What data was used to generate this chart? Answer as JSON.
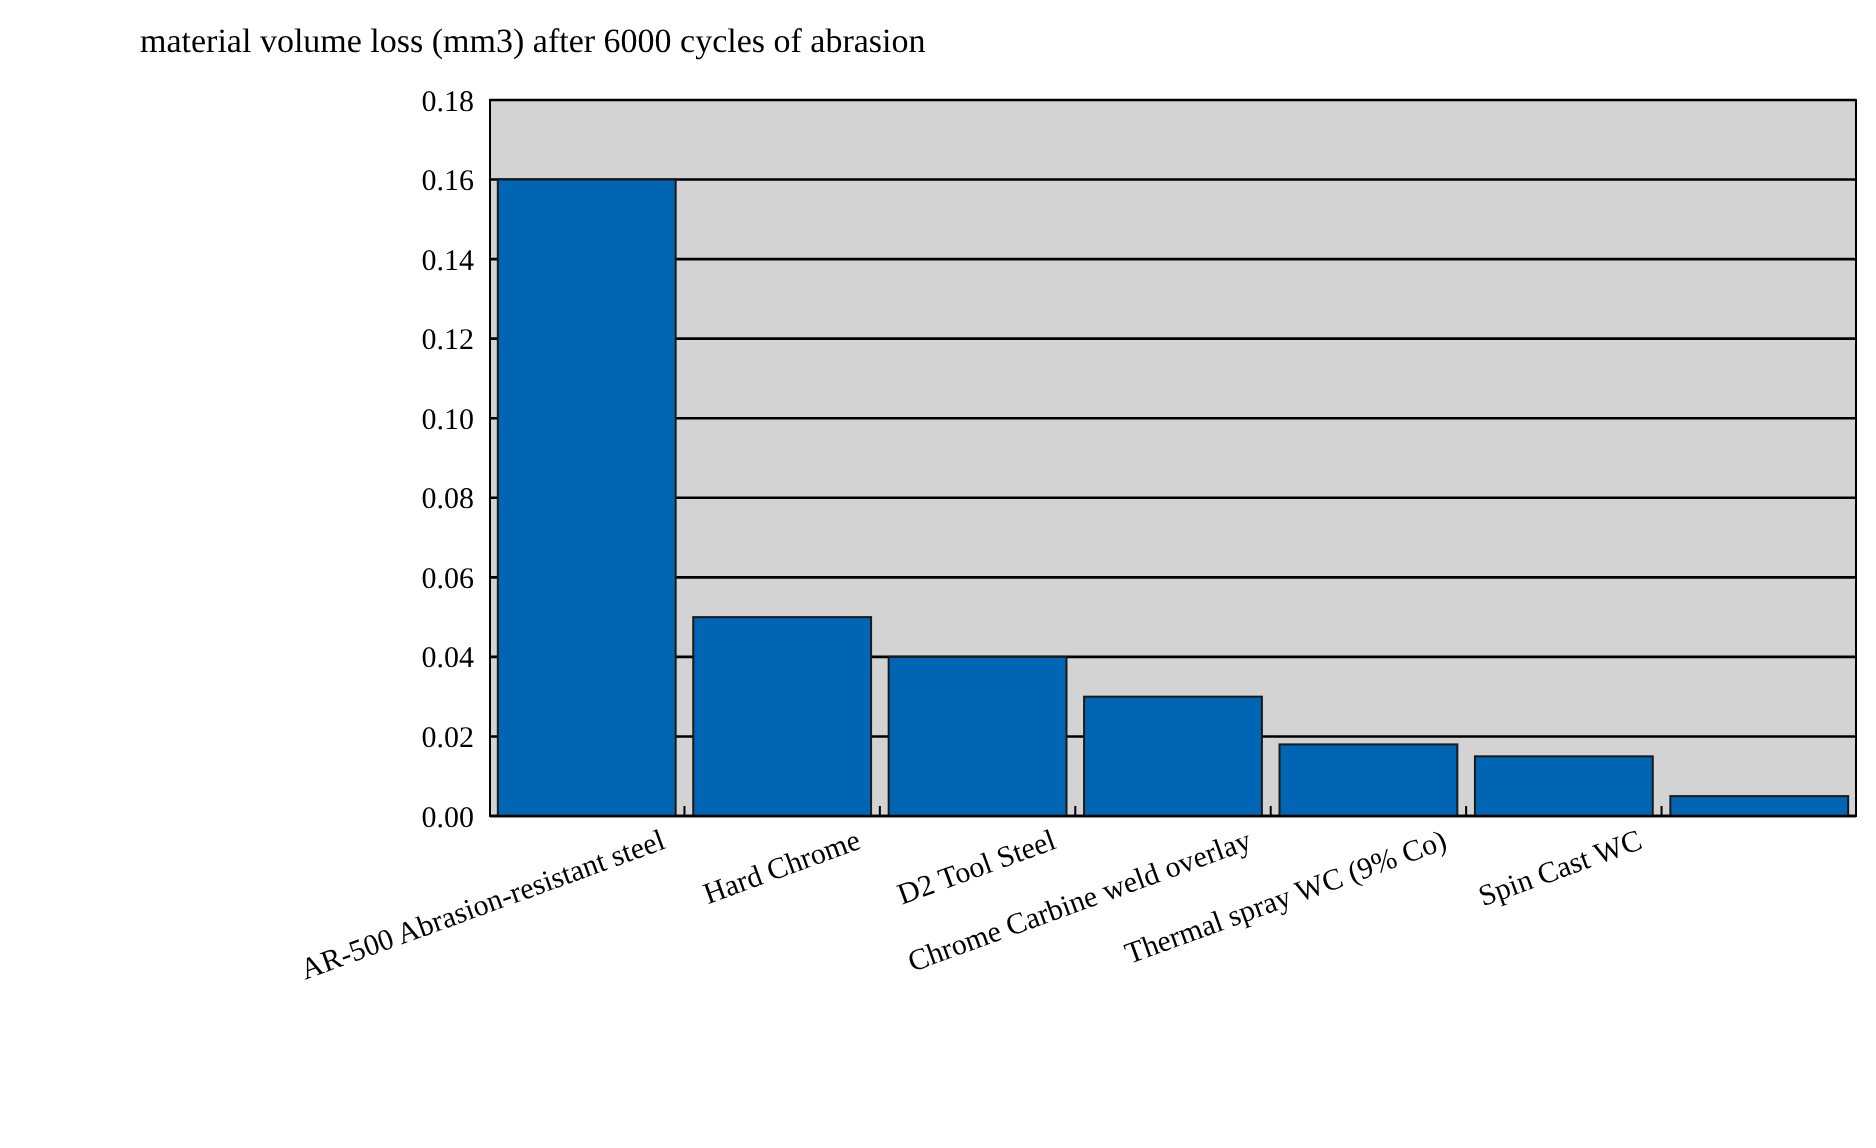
{
  "chart_data": {
    "type": "bar",
    "title": "material volume loss (mm3) after 6000 cycles of abrasion",
    "categories": [
      "AR-500 Abrasion-resistant steel",
      "Hard Chrome",
      "D2 Tool Steel",
      "Chrome Carbine weld overlay",
      "Thermal spray WC (9% Co)",
      "Spin Cast WC",
      null
    ],
    "values": [
      0.16,
      0.05,
      0.04,
      0.03,
      0.018,
      0.015,
      0.005
    ],
    "color": "#0066b3",
    "ylim": [
      0,
      0.18
    ],
    "yticks": [
      {
        "value": 0,
        "label": "0.00"
      },
      {
        "value": 0.02,
        "label": "0.02"
      },
      {
        "value": 0.04,
        "label": "0.04"
      },
      {
        "value": 0.06,
        "label": "0.06"
      },
      {
        "value": 0.08,
        "label": "0.08"
      },
      {
        "value": 0.1,
        "label": "0.10"
      },
      {
        "value": 0.12,
        "label": "0.12"
      },
      {
        "value": 0.14,
        "label": "0.14"
      },
      {
        "value": 0.16,
        "label": "0.16"
      },
      {
        "value": 0.18,
        "label": "0.18"
      }
    ],
    "grid": "y"
  }
}
